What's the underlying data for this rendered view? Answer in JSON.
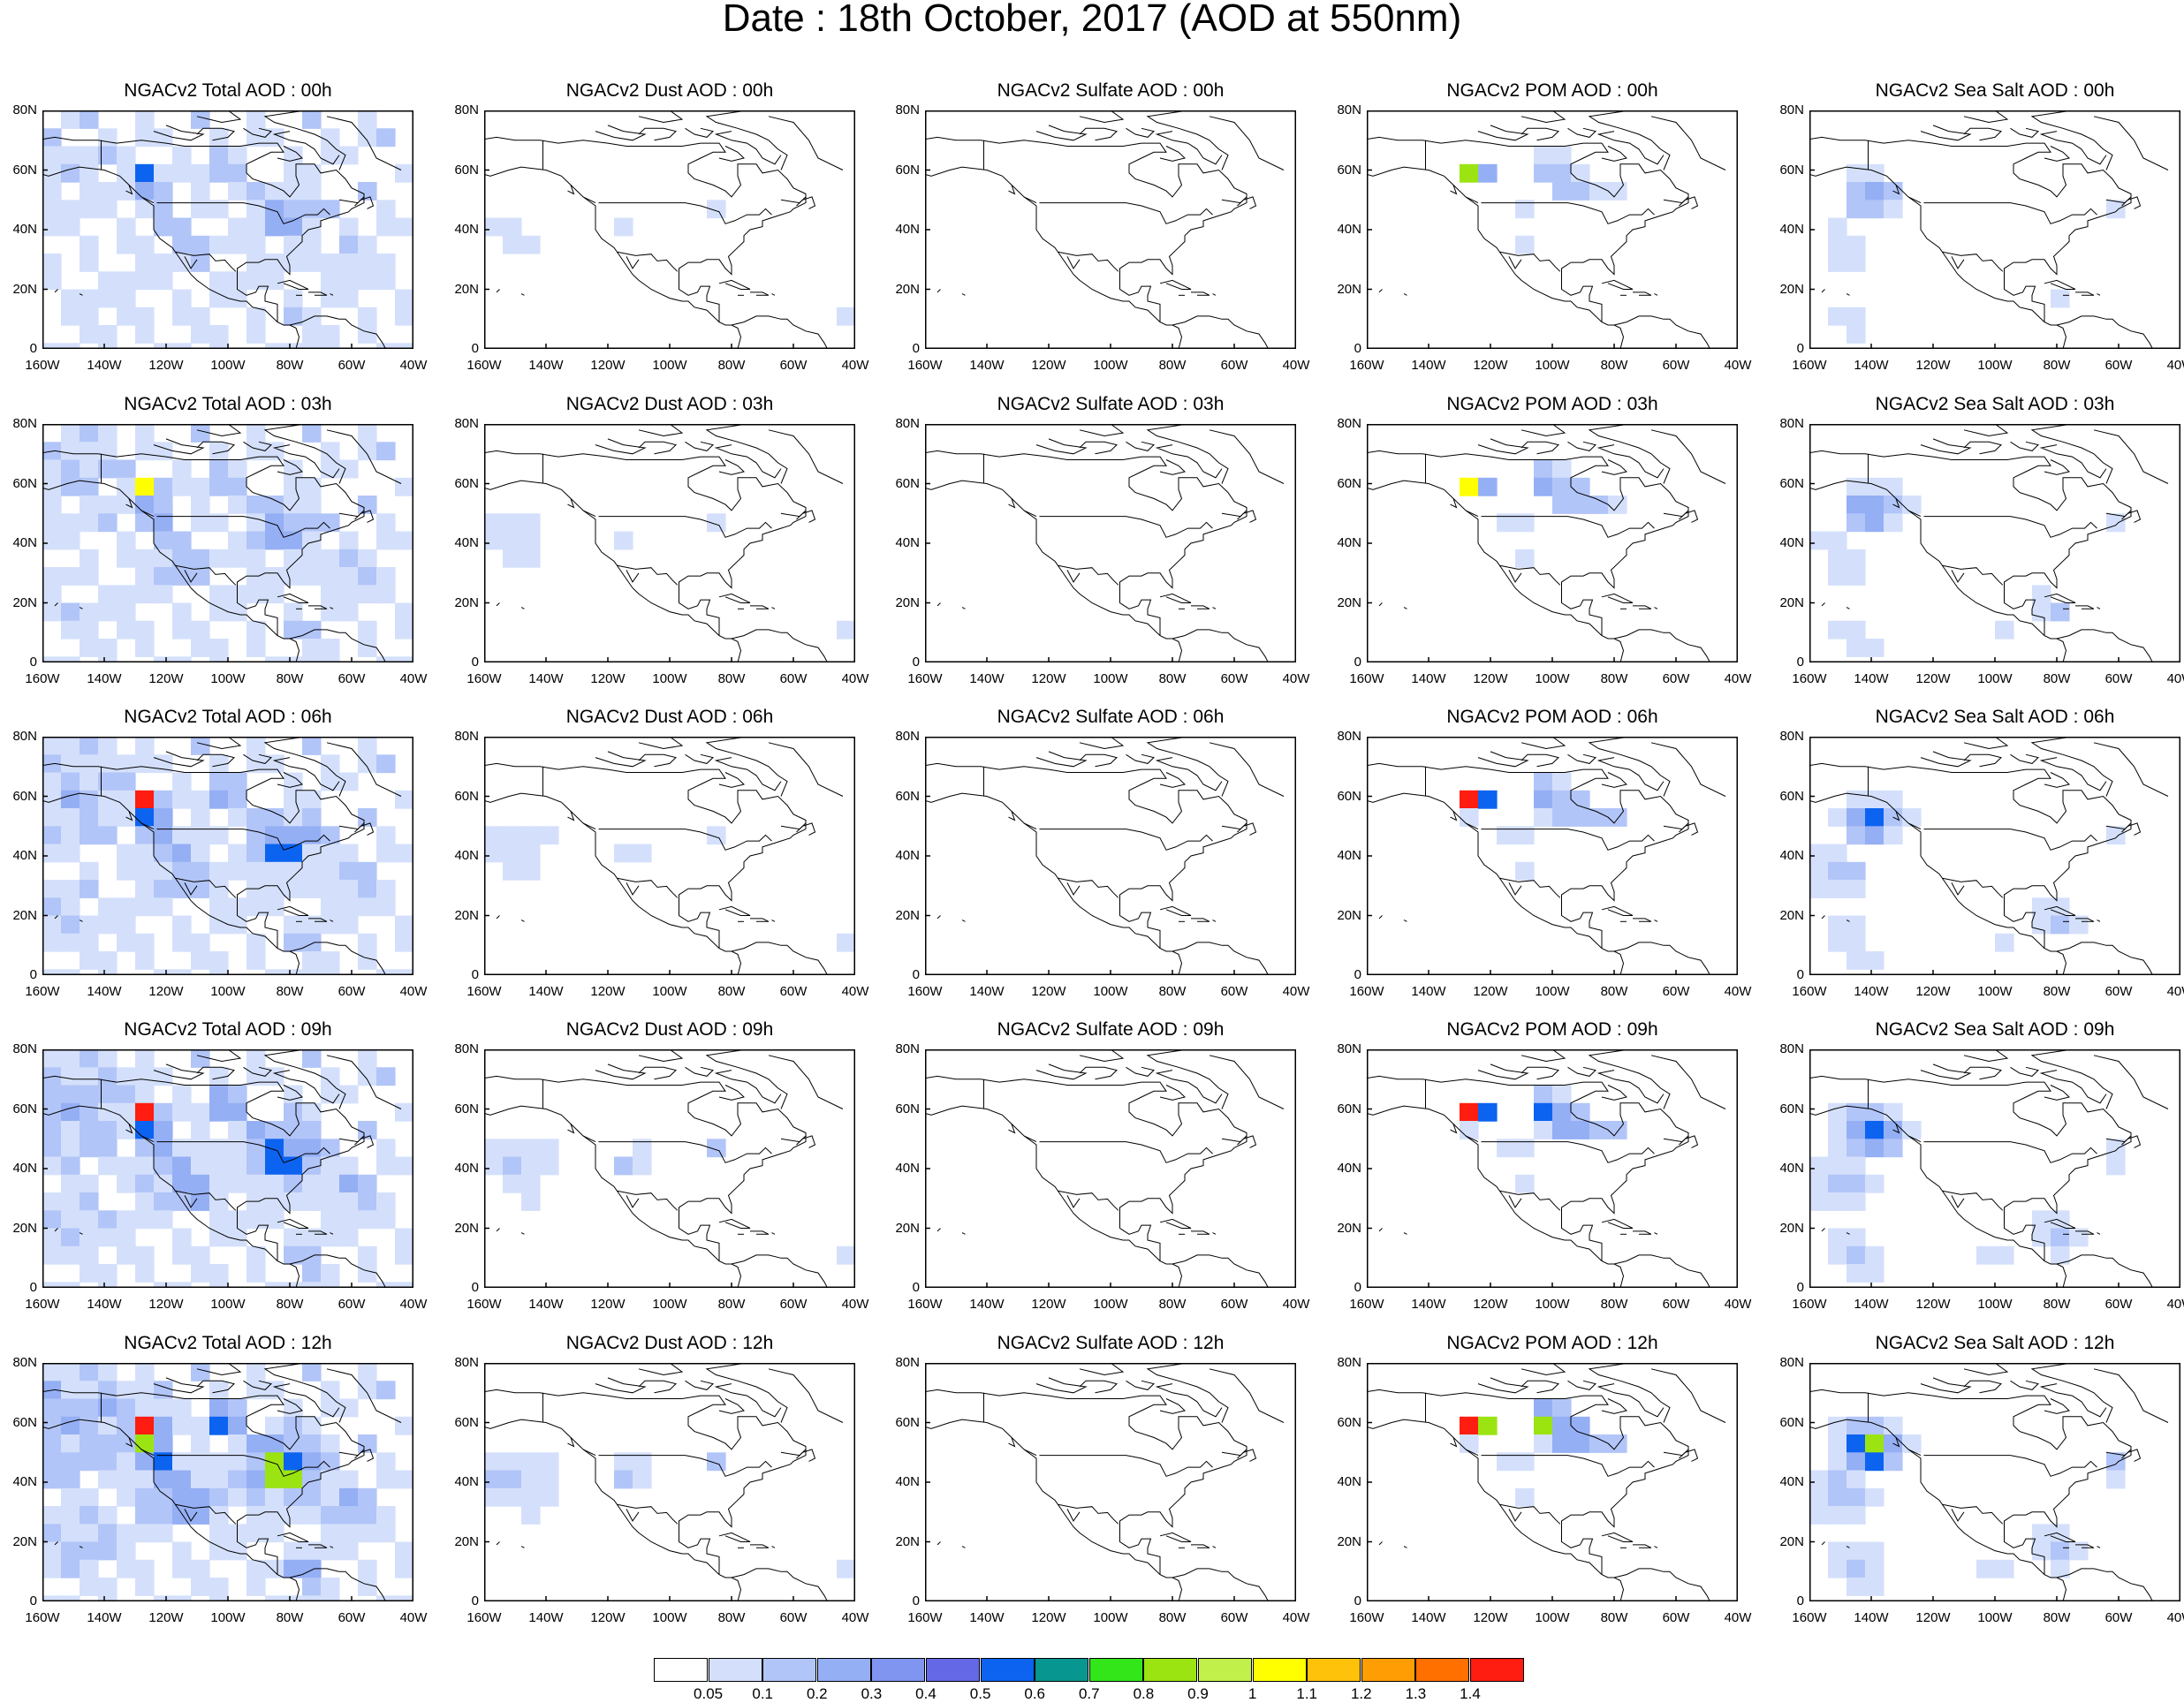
{
  "title": "Date : 18th October, 2017 (AOD at 550nm)",
  "axes": {
    "lat_labels": [
      "80N",
      "60N",
      "40N",
      "20N",
      "0"
    ],
    "lon_labels": [
      "160W",
      "140W",
      "120W",
      "100W",
      "80W",
      "60W",
      "40W"
    ],
    "lat_range": [
      0,
      80
    ],
    "lon_range": [
      -160,
      -40
    ]
  },
  "panels": [
    [
      "NGACv2 Total AOD : 00h",
      "NGACv2 Dust AOD : 00h",
      "NGACv2 Sulfate AOD : 00h",
      "NGACv2 POM AOD : 00h",
      "NGACv2 Sea Salt AOD : 00h"
    ],
    [
      "NGACv2 Total AOD : 03h",
      "NGACv2 Dust AOD : 03h",
      "NGACv2 Sulfate AOD : 03h",
      "NGACv2 POM AOD : 03h",
      "NGACv2 Sea Salt AOD : 03h"
    ],
    [
      "NGACv2 Total AOD : 06h",
      "NGACv2 Dust AOD : 06h",
      "NGACv2 Sulfate AOD : 06h",
      "NGACv2 POM AOD : 06h",
      "NGACv2 Sea Salt AOD : 06h"
    ],
    [
      "NGACv2 Total AOD : 09h",
      "NGACv2 Dust AOD : 09h",
      "NGACv2 Sulfate AOD : 09h",
      "NGACv2 POM AOD : 09h",
      "NGACv2 Sea Salt  AOD : 09h"
    ],
    [
      "NGACv2 Total AOD  : 12h",
      "NGACv2 Dust AOD : 12h",
      "NGACv2 Sulfate AOD : 12h",
      "NGACv2 POM  AOD : 12h",
      "NGACv2 Sea Salt  AOD : 12h"
    ]
  ],
  "colorbar": {
    "labels": [
      "0.05",
      "0.1",
      "0.2",
      "0.3",
      "0.4",
      "0.5",
      "0.6",
      "0.7",
      "0.8",
      "0.9",
      "1",
      "1.1",
      "1.2",
      "1.3",
      "1.4"
    ],
    "colors": [
      "#ffffff",
      "#d4e0fb",
      "#b2c5f8",
      "#95aff5",
      "#7f95ef",
      "#6568e6",
      "#0c63f0",
      "#089690",
      "#33e61a",
      "#9be412",
      "#c2f04a",
      "#ffff00",
      "#ffc20a",
      "#ff9d05",
      "#ff7000",
      "#ff1c10"
    ]
  },
  "species_colors": {
    "aod_low": "#d4e0fb",
    "aod_mid": "#b2c5f8",
    "aod_high": "#7f95ef",
    "smoke_peak": "#ff1c10"
  }
}
